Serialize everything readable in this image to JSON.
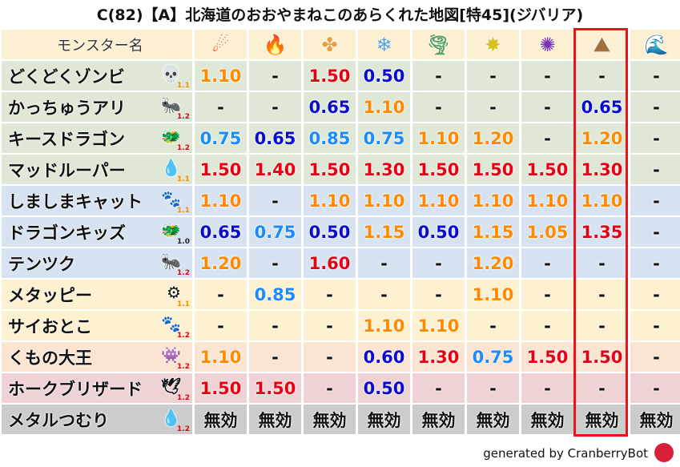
{
  "title": "C(82)【A】北海道のおおやまねこのあらくれた地図[特45](ジバリア)",
  "header": {
    "name_label": "モンスター名",
    "elements": [
      {
        "icon": "fireball-icon",
        "glyph": "☄",
        "color": "#e8441a"
      },
      {
        "icon": "flame-icon",
        "glyph": "🔥",
        "color": "#f05a1a"
      },
      {
        "icon": "clover-cross-icon",
        "glyph": "✤",
        "color": "#e8a040"
      },
      {
        "icon": "snowflake-icon",
        "glyph": "❄",
        "color": "#5aa0e0"
      },
      {
        "icon": "tornado-icon",
        "glyph": "🌪",
        "color": "#5aa060"
      },
      {
        "icon": "burst-icon",
        "glyph": "✸",
        "color": "#d8c020"
      },
      {
        "icon": "dark-swirl-icon",
        "glyph": "✺",
        "color": "#7a30b0"
      },
      {
        "icon": "mountain-icon",
        "glyph": "⛰",
        "color": "#a07040"
      },
      {
        "icon": "wave-icon",
        "glyph": "🌊",
        "color": "#2070d0"
      }
    ],
    "highlighted_column": 8
  },
  "value_colors": {
    "high": "#e60012",
    "mid": "#ff8a00",
    "low": "#1a8cff",
    "very_low": "#0a0ad0"
  },
  "rows": [
    {
      "name": "どくどくゾンビ",
      "icon": "skull-icon",
      "glyph": "💀",
      "mult": "1.1",
      "bg": "g",
      "values": [
        "1.10",
        "-",
        "1.50",
        "0.50",
        "-",
        "-",
        "-",
        "-",
        "-"
      ]
    },
    {
      "name": "かっちゅうアリ",
      "icon": "bug-icon",
      "glyph": "🐜",
      "mult": "1.2",
      "bg": "g",
      "values": [
        "-",
        "-",
        "0.65",
        "1.10",
        "-",
        "-",
        "-",
        "0.65",
        "-"
      ]
    },
    {
      "name": "キースドラゴン",
      "icon": "dragon-icon",
      "glyph": "🐲",
      "mult": "1.2",
      "bg": "g",
      "values": [
        "0.75",
        "0.65",
        "0.85",
        "0.75",
        "1.10",
        "1.20",
        "-",
        "1.20",
        "-"
      ]
    },
    {
      "name": "マッドルーパー",
      "icon": "drop-icon",
      "glyph": "💧",
      "mult": "1.1",
      "bg": "g",
      "values": [
        "1.50",
        "1.40",
        "1.50",
        "1.30",
        "1.50",
        "1.50",
        "1.50",
        "1.30",
        "-"
      ]
    },
    {
      "name": "しましまキャット",
      "icon": "paw-icon",
      "glyph": "🐾",
      "mult": "1.1",
      "bg": "b",
      "values": [
        "1.10",
        "-",
        "1.10",
        "1.10",
        "1.10",
        "1.10",
        "1.10",
        "1.10",
        "-"
      ]
    },
    {
      "name": "ドラゴンキッズ",
      "icon": "dragon-icon",
      "glyph": "🐲",
      "mult": "1.0",
      "bg": "b",
      "values": [
        "0.65",
        "0.75",
        "0.50",
        "1.15",
        "0.50",
        "1.15",
        "1.05",
        "1.35",
        "-"
      ]
    },
    {
      "name": "テンツク",
      "icon": "bug-icon",
      "glyph": "🐜",
      "mult": "1.2",
      "bg": "b",
      "values": [
        "1.20",
        "-",
        "1.60",
        "-",
        "-",
        "1.20",
        "-",
        "-",
        "-"
      ]
    },
    {
      "name": "メタッピー",
      "icon": "gear-icon",
      "glyph": "⚙",
      "mult": "1.1",
      "bg": "y",
      "values": [
        "-",
        "0.85",
        "-",
        "-",
        "-",
        "1.10",
        "-",
        "-",
        "-"
      ]
    },
    {
      "name": "サイおとこ",
      "icon": "paw-icon",
      "glyph": "🐾",
      "mult": "1.2",
      "bg": "y",
      "values": [
        "-",
        "-",
        "-",
        "1.10",
        "1.10",
        "-",
        "-",
        "-",
        "-"
      ]
    },
    {
      "name": "くもの大王",
      "icon": "ghost-icon",
      "glyph": "👾",
      "mult": "1.2",
      "bg": "o",
      "values": [
        "1.10",
        "-",
        "-",
        "0.60",
        "1.30",
        "0.75",
        "1.50",
        "1.50",
        "-"
      ]
    },
    {
      "name": "ホークブリザード",
      "icon": "wing-icon",
      "glyph": "🕊",
      "mult": "1.2",
      "bg": "p",
      "values": [
        "1.50",
        "1.50",
        "-",
        "0.50",
        "-",
        "-",
        "-",
        "-",
        "-"
      ]
    },
    {
      "name": "メタルつむり",
      "icon": "slime-icon",
      "glyph": "💧",
      "mult": "1.2",
      "bg": "k",
      "values": [
        "無効",
        "無効",
        "無効",
        "無効",
        "無効",
        "無効",
        "無効",
        "無効",
        "無効"
      ]
    }
  ],
  "footer": "generated by CranberryBot"
}
